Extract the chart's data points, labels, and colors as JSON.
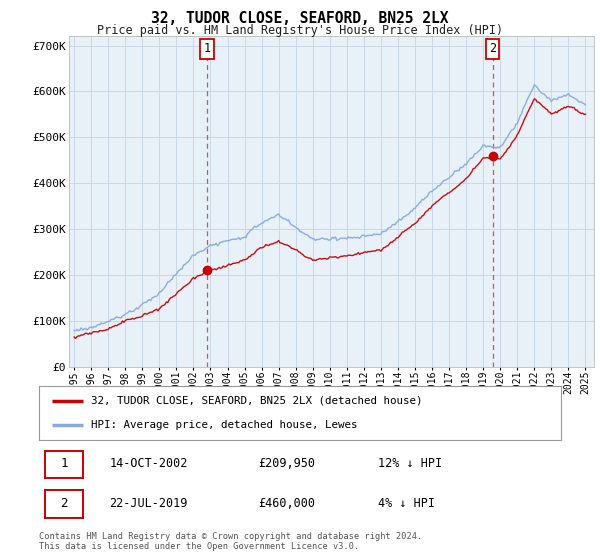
{
  "title": "32, TUDOR CLOSE, SEAFORD, BN25 2LX",
  "subtitle": "Price paid vs. HM Land Registry's House Price Index (HPI)",
  "background_color": "#ffffff",
  "plot_bg_color": "#e8f0f8",
  "grid_color": "#c8d8e8",
  "yticks": [
    0,
    100000,
    200000,
    300000,
    400000,
    500000,
    600000,
    700000
  ],
  "ytick_labels": [
    "£0",
    "£100K",
    "£200K",
    "£300K",
    "£400K",
    "£500K",
    "£600K",
    "£700K"
  ],
  "ylim": [
    0,
    720000
  ],
  "legend_label_red": "32, TUDOR CLOSE, SEAFORD, BN25 2LX (detached house)",
  "legend_label_blue": "HPI: Average price, detached house, Lewes",
  "red_color": "#cc0000",
  "blue_color": "#88aadd",
  "annotation1_date": "14-OCT-2002",
  "annotation1_price": "£209,950",
  "annotation1_hpi": "12% ↓ HPI",
  "annotation2_date": "22-JUL-2019",
  "annotation2_price": "£460,000",
  "annotation2_hpi": "4% ↓ HPI",
  "footer": "Contains HM Land Registry data © Crown copyright and database right 2024.\nThis data is licensed under the Open Government Licence v3.0.",
  "vline1_x": 2002.79,
  "vline2_x": 2019.55,
  "sale1_x": 2002.79,
  "sale1_y": 209950,
  "sale2_x": 2019.55,
  "sale2_y": 460000,
  "xlim_left": 1994.7,
  "xlim_right": 2025.5
}
